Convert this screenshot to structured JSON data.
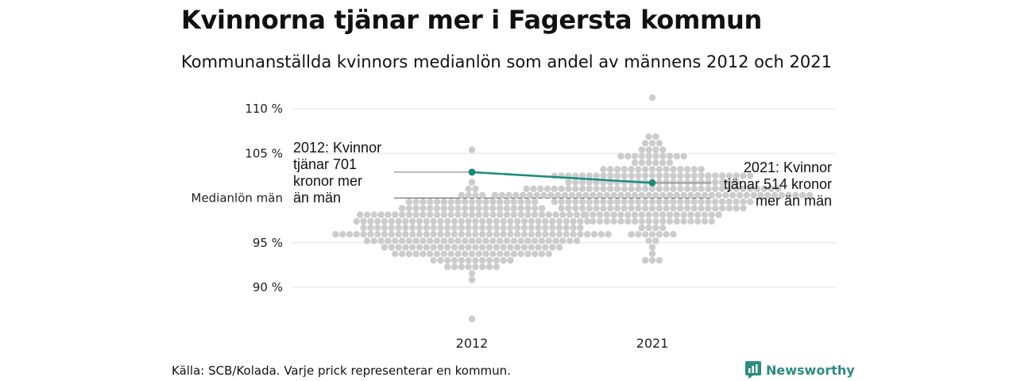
{
  "title": "Kvinnorna tjänar mer i Fagersta kommun",
  "subtitle": "Kommunanställda kvinnors medianlön som andel av männens 2012 och 2021",
  "source": "Källa: SCB/Kolada. Varje prick representerar en kommun.",
  "brand": {
    "name": "Newsworthy",
    "icon": "newsworthy-logo-icon",
    "color": "#2e8b7d"
  },
  "colors": {
    "dots": "#cccccc",
    "highlight": "#1a8c7e",
    "grid": "#e0e0e0",
    "reference": "#555555"
  },
  "chart_data": {
    "type": "scatter",
    "style": "beeswarm",
    "categories": [
      "2012",
      "2021"
    ],
    "y_ticks": [
      {
        "value": 110,
        "label": "110 %"
      },
      {
        "value": 105,
        "label": "105 %"
      },
      {
        "value": 100,
        "label": "Medianlön män"
      },
      {
        "value": 95,
        "label": "95 %"
      },
      {
        "value": 90,
        "label": "90 %"
      }
    ],
    "ylim": [
      85.5,
      112
    ],
    "reference_line": {
      "value": 100,
      "label": "Medianlön män"
    },
    "highlight": {
      "name": "Fagersta kommun",
      "values": [
        102.9,
        101.7
      ],
      "annotations": [
        {
          "category": "2012",
          "value": 102.9,
          "text": [
            "2012: Kvinnor",
            "tjänar 701",
            "kronor mer",
            "än män"
          ]
        },
        {
          "category": "2021",
          "value": 101.7,
          "text": [
            "2021: Kvinnor",
            "tjänar 514 kronor",
            "mer än män"
          ]
        }
      ]
    },
    "distributions": [
      {
        "category": "2012",
        "n": 290,
        "median": 96.3,
        "spread": 2.1,
        "min": 86.7,
        "max": 105.3
      },
      {
        "category": "2021",
        "n": 290,
        "median": 100.6,
        "spread": 2.3,
        "min": 92.7,
        "max": 111.3
      }
    ]
  }
}
